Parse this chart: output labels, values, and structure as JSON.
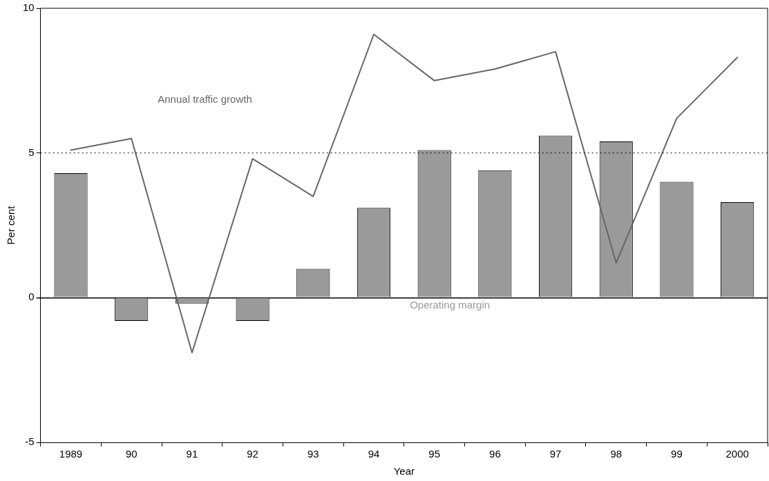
{
  "chart_data": {
    "type": "bar",
    "xlabel": "Year",
    "ylabel": "Per cent",
    "categories": [
      "1989",
      "90",
      "91",
      "92",
      "93",
      "94",
      "95",
      "96",
      "97",
      "98",
      "99",
      "2000"
    ],
    "series": [
      {
        "name": "Operating margin",
        "color": "#9a9a9a",
        "values": [
          4.3,
          -0.8,
          -0.2,
          -0.8,
          1.0,
          3.1,
          5.1,
          4.4,
          5.6,
          5.4,
          4.0,
          3.3
        ]
      },
      {
        "name": "Annual traffic growth",
        "type": "line",
        "color": "#666666",
        "values": [
          5.1,
          5.5,
          -1.9,
          4.8,
          3.5,
          9.1,
          7.5,
          7.9,
          8.5,
          1.2,
          6.2,
          8.3
        ]
      }
    ],
    "ylim": [
      -5,
      10
    ],
    "yticks": [
      -5,
      0,
      5,
      10
    ],
    "ref_lines": [
      {
        "axis": "y",
        "value": 5,
        "line_style": "dotted",
        "color": "#000000"
      }
    ],
    "grid": false,
    "legend": false,
    "marker": "none",
    "line_style": "solid"
  }
}
